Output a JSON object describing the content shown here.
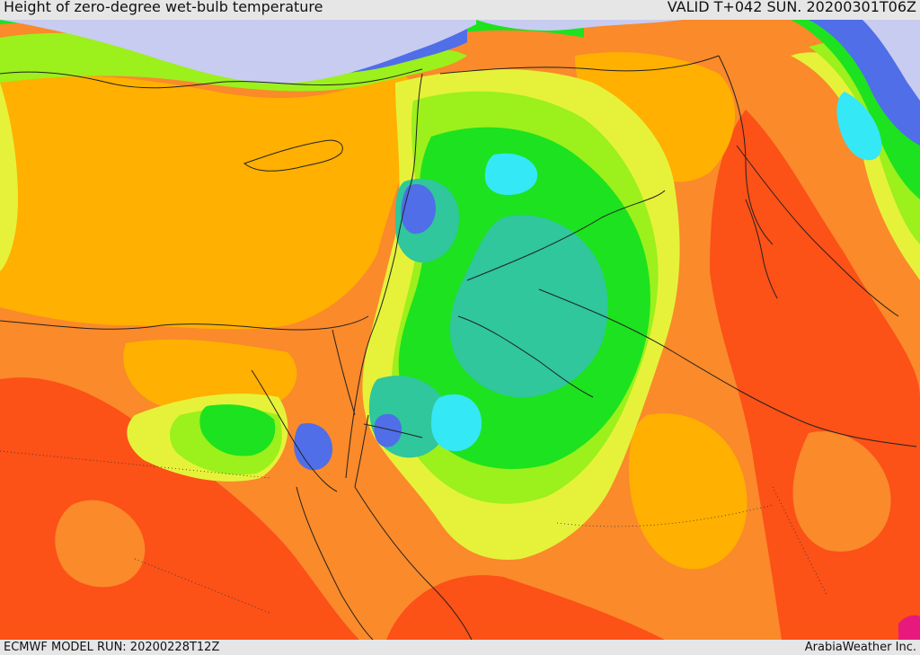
{
  "header": {
    "title": "Height of zero-degree wet-bulb temperature",
    "valid": "VALID T+042 SUN. 20200301T06Z"
  },
  "footer": {
    "model_run": "ECMWF MODEL RUN: 20200228T12Z",
    "brand": "ArabiaWeather Inc."
  },
  "palette": {
    "lavender": "#c8ccf0",
    "blue": "#4f6ee8",
    "cyan": "#35e8f5",
    "teal": "#2fc79b",
    "green": "#1de21f",
    "lime": "#9cf01c",
    "yellow": "#e6f23a",
    "amber": "#ffb000",
    "orange": "#fa8a2a",
    "red": "#fc5117",
    "magenta": "#e8197c"
  }
}
